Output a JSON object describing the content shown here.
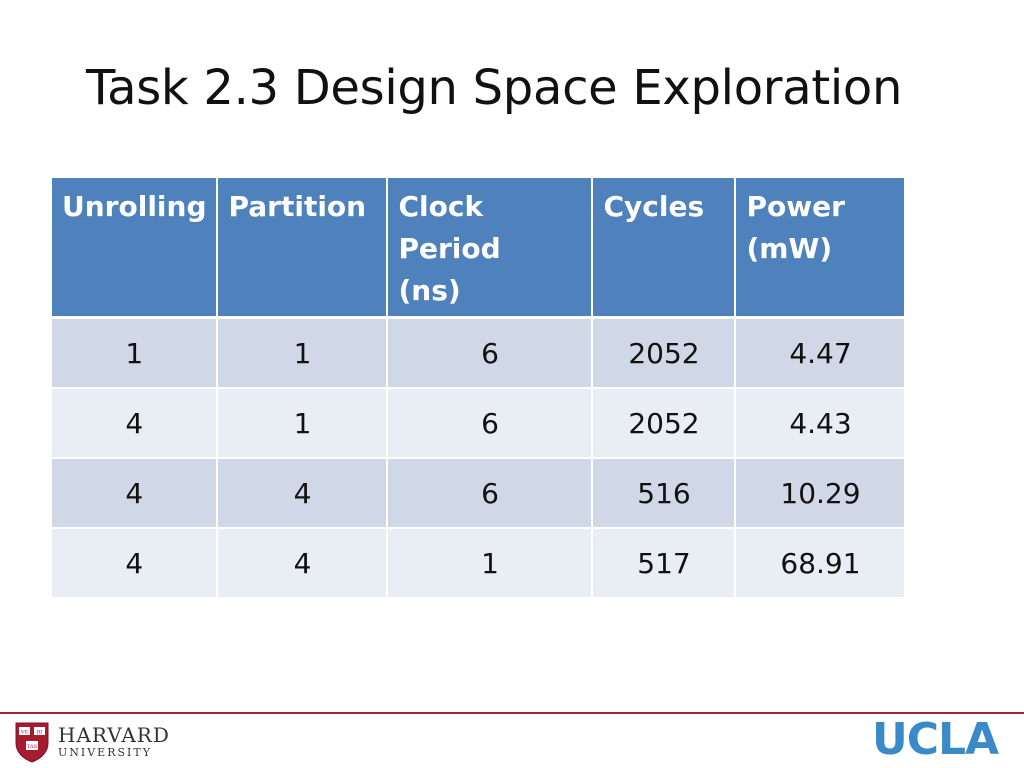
{
  "slide": {
    "title": "Task 2.3 Design Space Exploration"
  },
  "table": {
    "headers": {
      "h1": "Unrolling",
      "h2": "Partition",
      "h3a": "Clock Period",
      "h3b": "(ns)",
      "h4": "Cycles",
      "h5a": "Power",
      "h5b": "(mW)"
    },
    "rows": [
      {
        "unrolling": "1",
        "partition": "1",
        "clock_period": "6",
        "cycles": "2052",
        "power": "4.47"
      },
      {
        "unrolling": "4",
        "partition": "1",
        "clock_period": "6",
        "cycles": "2052",
        "power": "4.43"
      },
      {
        "unrolling": "4",
        "partition": "4",
        "clock_period": "6",
        "cycles": "516",
        "power": "10.29"
      },
      {
        "unrolling": "4",
        "partition": "4",
        "clock_period": "1",
        "cycles": "517",
        "power": "68.91"
      }
    ],
    "colors": {
      "header_bg": "#4f81bd",
      "row_odd_bg": "#d0d8e8",
      "row_even_bg": "#e9edf4"
    }
  },
  "footer": {
    "harvard_name": "HARVARD",
    "harvard_sub": "UNIVERSITY",
    "harvard_shield_text": [
      "VE",
      "RI",
      "TAS"
    ],
    "ucla": "UCLA",
    "line_color": "#a31f34",
    "ucla_color": "#3a8ac9"
  }
}
